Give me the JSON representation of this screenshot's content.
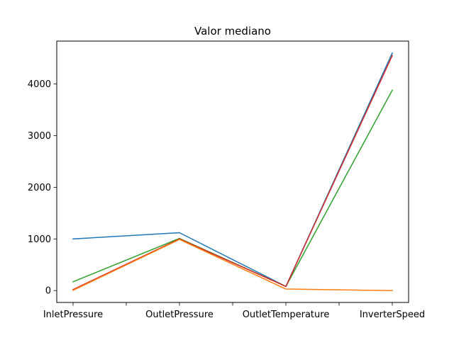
{
  "chart_data": {
    "type": "line",
    "title": "Valor mediano",
    "xlabel": "",
    "ylabel": "",
    "categories": [
      "InletPressure",
      "OutletPressure",
      "OutletTemperature",
      "InverterSpeed"
    ],
    "yticks": [
      "0",
      "1000",
      "2000",
      "3000",
      "4000"
    ],
    "ytick_values": [
      0,
      1000,
      2000,
      3000,
      4000
    ],
    "ylim": [
      -230,
      4830
    ],
    "grid": false,
    "legend": "none",
    "series": [
      {
        "color": "#1f77b4",
        "values": [
          1000,
          1120,
          80,
          4600
        ]
      },
      {
        "color": "#2ca02c",
        "values": [
          170,
          1010,
          80,
          3880
        ]
      },
      {
        "color": "#d62728",
        "values": [
          20,
          1000,
          80,
          4550
        ]
      },
      {
        "color": "#ff7f0e",
        "values": [
          5,
          990,
          30,
          0
        ]
      }
    ]
  }
}
